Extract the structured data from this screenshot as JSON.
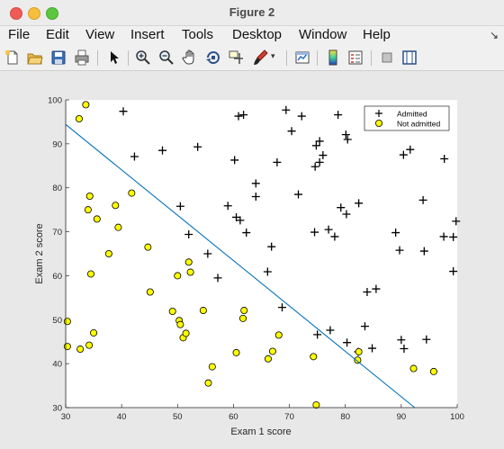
{
  "window": {
    "title": "Figure 2"
  },
  "menu": {
    "items": [
      "File",
      "Edit",
      "View",
      "Insert",
      "Tools",
      "Desktop",
      "Window",
      "Help"
    ],
    "overflow": "↘"
  },
  "toolbar": {
    "icons": [
      "new-figure-icon",
      "open-icon",
      "save-icon",
      "print-icon",
      "pointer-icon",
      "zoom-in-icon",
      "zoom-out-icon",
      "pan-icon",
      "rotate-3d-icon",
      "data-cursor-icon",
      "brush-icon",
      "dropdown-arrow-icon",
      "link-plot-icon",
      "colorbar-icon",
      "legend-icon",
      "hide-plot-tools-icon",
      "show-plot-tools-icon"
    ]
  },
  "chart_data": {
    "type": "scatter",
    "title": "",
    "xlabel": "Exam 1 score",
    "ylabel": "Exam 2 score",
    "xlim": [
      30,
      100
    ],
    "ylim": [
      30,
      100
    ],
    "xticks": [
      30,
      40,
      50,
      60,
      70,
      80,
      90,
      100
    ],
    "yticks": [
      30,
      40,
      50,
      60,
      70,
      80,
      90,
      100
    ],
    "grid": false,
    "legend_position": "top-right",
    "series": [
      {
        "name": "Admitted",
        "marker": "plus",
        "color": "#000000",
        "points": [
          [
            40.3,
            97.4
          ],
          [
            42.3,
            87.1
          ],
          [
            47.3,
            88.5
          ],
          [
            50.5,
            75.8
          ],
          [
            52.0,
            69.4
          ],
          [
            53.6,
            89.3
          ],
          [
            55.4,
            65.0
          ],
          [
            57.2,
            59.5
          ],
          [
            59.0,
            75.9
          ],
          [
            60.2,
            86.3
          ],
          [
            60.5,
            73.3
          ],
          [
            61.2,
            72.6
          ],
          [
            60.9,
            96.3
          ],
          [
            61.8,
            96.6
          ],
          [
            62.3,
            69.8
          ],
          [
            64.0,
            81.0
          ],
          [
            64.0,
            78.0
          ],
          [
            66.1,
            60.9
          ],
          [
            66.8,
            66.6
          ],
          [
            67.8,
            85.8
          ],
          [
            68.7,
            52.8
          ],
          [
            69.4,
            97.7
          ],
          [
            70.4,
            92.9
          ],
          [
            72.2,
            96.3
          ],
          [
            71.6,
            78.5
          ],
          [
            74.5,
            69.9
          ],
          [
            74.6,
            84.8
          ],
          [
            74.8,
            89.6
          ],
          [
            75.0,
            46.6
          ],
          [
            75.4,
            85.8
          ],
          [
            75.4,
            90.6
          ],
          [
            76.0,
            87.4
          ],
          [
            77.0,
            70.5
          ],
          [
            77.3,
            47.6
          ],
          [
            78.1,
            68.9
          ],
          [
            78.7,
            96.6
          ],
          [
            79.2,
            75.5
          ],
          [
            80.2,
            74.0
          ],
          [
            80.1,
            92.1
          ],
          [
            80.4,
            91.0
          ],
          [
            80.3,
            44.8
          ],
          [
            82.3,
            42.7
          ],
          [
            82.4,
            76.5
          ],
          [
            83.5,
            48.5
          ],
          [
            83.9,
            56.3
          ],
          [
            84.8,
            43.5
          ],
          [
            85.5,
            57.0
          ],
          [
            89.0,
            69.8
          ],
          [
            89.7,
            65.8
          ],
          [
            90.4,
            87.5
          ],
          [
            90.0,
            45.4
          ],
          [
            90.5,
            43.4
          ],
          [
            91.6,
            88.7
          ],
          [
            93.9,
            77.2
          ],
          [
            94.1,
            65.6
          ],
          [
            94.5,
            45.5
          ],
          [
            97.6,
            68.9
          ],
          [
            97.7,
            86.6
          ],
          [
            99.3,
            68.8
          ],
          [
            99.3,
            61.0
          ],
          [
            99.8,
            72.4
          ]
        ]
      },
      {
        "name": "Not admitted",
        "marker": "circle",
        "color": "#ffff00",
        "points": [
          [
            30.3,
            49.6
          ],
          [
            30.3,
            43.9
          ],
          [
            32.4,
            95.7
          ],
          [
            32.6,
            43.3
          ],
          [
            33.6,
            98.9
          ],
          [
            34.0,
            75.0
          ],
          [
            34.2,
            44.2
          ],
          [
            34.3,
            78.1
          ],
          [
            34.5,
            60.4
          ],
          [
            35.0,
            47.0
          ],
          [
            35.6,
            72.9
          ],
          [
            37.7,
            65.0
          ],
          [
            38.9,
            76.0
          ],
          [
            39.4,
            71.0
          ],
          [
            41.8,
            78.8
          ],
          [
            44.7,
            66.5
          ],
          [
            45.1,
            56.3
          ],
          [
            49.1,
            51.9
          ],
          [
            50.0,
            60.0
          ],
          [
            50.3,
            49.8
          ],
          [
            50.5,
            48.9
          ],
          [
            51.0,
            45.9
          ],
          [
            51.5,
            46.9
          ],
          [
            52.0,
            63.1
          ],
          [
            52.3,
            60.8
          ],
          [
            54.6,
            52.1
          ],
          [
            55.5,
            35.6
          ],
          [
            56.2,
            39.3
          ],
          [
            60.5,
            42.5
          ],
          [
            61.7,
            50.3
          ],
          [
            61.9,
            52.1
          ],
          [
            66.2,
            41.1
          ],
          [
            67.0,
            42.8
          ],
          [
            68.1,
            46.5
          ],
          [
            74.3,
            41.6
          ],
          [
            74.8,
            30.6
          ],
          [
            82.2,
            40.8
          ],
          [
            82.4,
            42.7
          ],
          [
            92.2,
            38.9
          ],
          [
            95.8,
            38.2
          ]
        ]
      }
    ],
    "boundary_line": {
      "color": "#0072bd",
      "points": [
        [
          30,
          94.4
        ],
        [
          92.4,
          30
        ]
      ]
    }
  }
}
